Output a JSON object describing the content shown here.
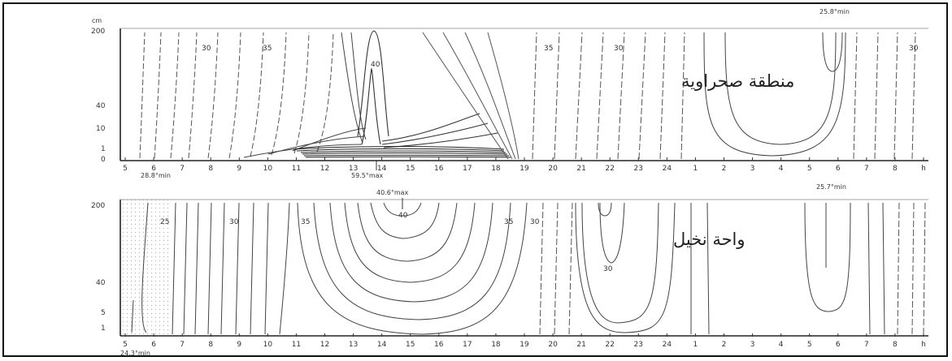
{
  "panels": [
    {
      "id": "desert",
      "caption": "منطقة صحراوية",
      "unit_label": "cm",
      "y_ticks": [
        "200",
        "40",
        "10",
        "1",
        "0"
      ],
      "hours": [
        "5",
        "6",
        "7",
        "8",
        "9",
        "10",
        "11",
        "12",
        "13",
        "14",
        "15",
        "16",
        "17",
        "18",
        "19",
        "20",
        "21",
        "22",
        "23",
        "24",
        "1",
        "2",
        "3",
        "4",
        "5",
        "6",
        "7",
        "8",
        "h"
      ],
      "isotherm_labels": [
        "30",
        "35",
        "40",
        "35",
        "30",
        "30"
      ],
      "annotations": {
        "min_low": "28.8°min",
        "max_low": "59.5°max",
        "min_top": "25.8°min"
      }
    },
    {
      "id": "palm_oasis",
      "caption": "واحة نخيل",
      "unit_label": "",
      "y_ticks": [
        "200",
        "40",
        "5",
        "1"
      ],
      "hours": [
        "5",
        "6",
        "7",
        "8",
        "9",
        "10",
        "11",
        "12",
        "13",
        "14",
        "15",
        "16",
        "17",
        "18",
        "19",
        "20",
        "21",
        "22",
        "23",
        "24",
        "1",
        "2",
        "3",
        "4",
        "5",
        "6",
        "7",
        "8",
        "h"
      ],
      "isotherm_labels": [
        "25",
        "30",
        "35",
        "40",
        "35",
        "30",
        "30"
      ],
      "annotations": {
        "min_low": "24.3°min",
        "max_top": "40.6°max",
        "min_top": "25.7°min"
      }
    }
  ]
}
